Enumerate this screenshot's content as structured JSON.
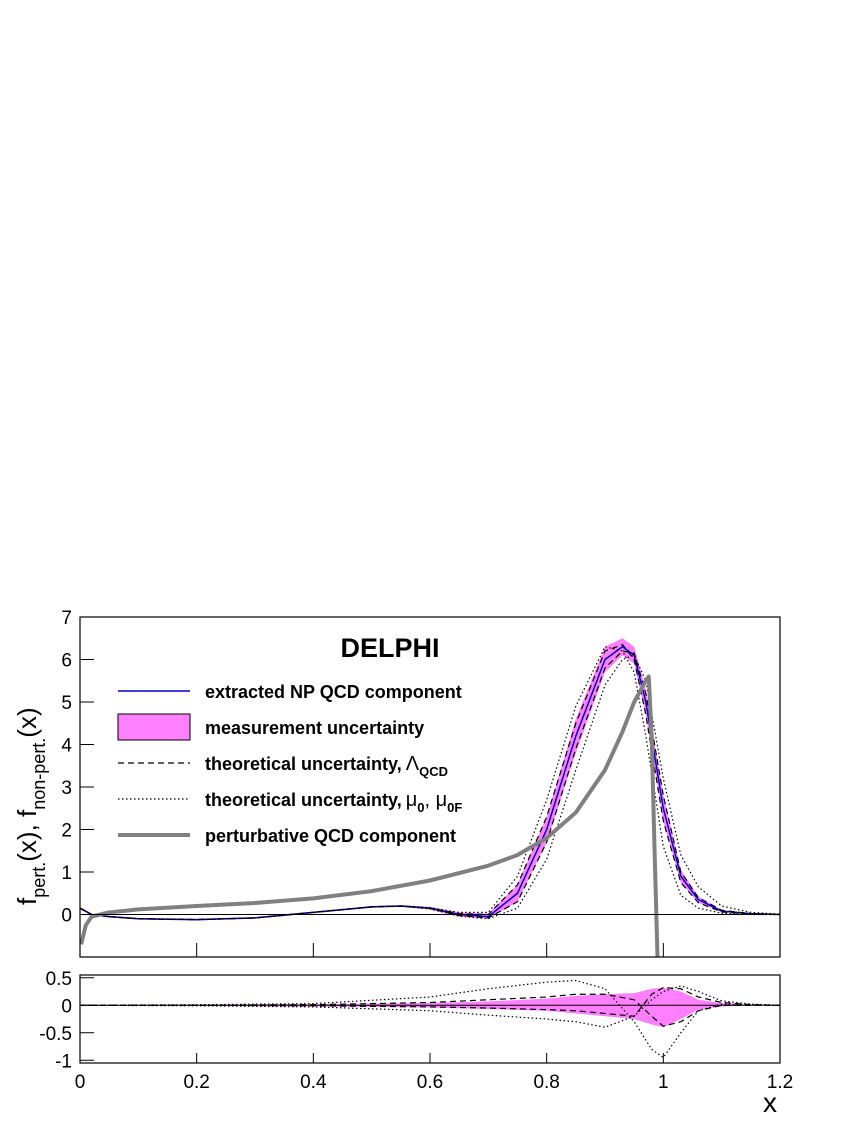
{
  "chart_data": [
    {
      "type": "line",
      "title": "DELPHI",
      "ylabel_parts": [
        {
          "text": "f",
          "sub": "pert."
        },
        {
          "text": "(x),  f",
          "sub": "non-pert."
        },
        {
          "text": "(x)"
        }
      ],
      "xlim": [
        0,
        1.2
      ],
      "xticks": [
        0,
        0.2,
        0.4,
        0.6,
        0.8,
        1,
        1.2
      ],
      "ylim": [
        -1,
        7
      ],
      "yticks": [
        0,
        1,
        2,
        3,
        4,
        5,
        6,
        7
      ],
      "series": [
        {
          "name": "extracted NP QCD component",
          "color": "#0000cc",
          "style": "solid",
          "x": [
            0,
            0.02,
            0.05,
            0.1,
            0.2,
            0.3,
            0.4,
            0.5,
            0.55,
            0.6,
            0.65,
            0.7,
            0.75,
            0.8,
            0.85,
            0.9,
            0.93,
            0.95,
            0.97,
            1.0,
            1.03,
            1.06,
            1.1,
            1.15,
            1.2
          ],
          "values": [
            0.15,
            0.0,
            -0.05,
            -0.1,
            -0.12,
            -0.08,
            0.05,
            0.18,
            0.2,
            0.15,
            0.0,
            -0.05,
            0.5,
            2.0,
            4.2,
            6.0,
            6.3,
            6.1,
            5.0,
            2.5,
            0.9,
            0.35,
            0.08,
            0.02,
            0.0
          ]
        },
        {
          "name": "measurement uncertainty",
          "color": "#ff80ff",
          "style": "band",
          "x": [
            0,
            0.02,
            0.05,
            0.1,
            0.2,
            0.3,
            0.4,
            0.5,
            0.55,
            0.6,
            0.65,
            0.7,
            0.75,
            0.8,
            0.85,
            0.9,
            0.93,
            0.95,
            0.97,
            1.0,
            1.03,
            1.06,
            1.1,
            1.15,
            1.2
          ],
          "upper": [
            0.18,
            0.02,
            -0.03,
            -0.08,
            -0.1,
            -0.06,
            0.07,
            0.2,
            0.22,
            0.18,
            0.05,
            0.02,
            0.7,
            2.3,
            4.6,
            6.3,
            6.5,
            6.3,
            5.3,
            2.8,
            1.05,
            0.42,
            0.1,
            0.03,
            0.01
          ],
          "lower": [
            0.12,
            -0.02,
            -0.07,
            -0.12,
            -0.14,
            -0.1,
            0.03,
            0.16,
            0.18,
            0.12,
            -0.05,
            -0.1,
            0.3,
            1.7,
            3.8,
            5.7,
            6.1,
            5.9,
            4.7,
            2.2,
            0.75,
            0.28,
            0.06,
            0.01,
            0.0
          ]
        },
        {
          "name": "theoretical uncertainty,",
          "name_math": [
            {
              "text": "Λ",
              "sub": "QCD"
            }
          ],
          "color": "#000000",
          "style": "dashed",
          "x": [
            0,
            0.02,
            0.05,
            0.1,
            0.2,
            0.3,
            0.4,
            0.5,
            0.55,
            0.6,
            0.65,
            0.7,
            0.75,
            0.8,
            0.85,
            0.9,
            0.93,
            0.95,
            0.97,
            1.0,
            1.03,
            1.06,
            1.1,
            1.15,
            1.2
          ],
          "curves": [
            [
              0.15,
              0.0,
              -0.05,
              -0.1,
              -0.12,
              -0.08,
              0.05,
              0.18,
              0.2,
              0.15,
              0.02,
              0.0,
              0.7,
              2.3,
              4.5,
              6.2,
              6.35,
              6.0,
              4.7,
              2.2,
              0.75,
              0.28,
              0.06,
              0.01,
              0.0
            ],
            [
              0.15,
              0.0,
              -0.05,
              -0.1,
              -0.12,
              -0.08,
              0.05,
              0.18,
              0.2,
              0.14,
              -0.02,
              -0.08,
              0.3,
              1.7,
              3.9,
              5.8,
              6.2,
              6.15,
              5.2,
              2.8,
              1.0,
              0.4,
              0.1,
              0.02,
              0.0
            ]
          ]
        },
        {
          "name": "theoretical uncertainty,",
          "name_math": [
            {
              "text": "μ",
              "sub": "0"
            },
            {
              "text": ", μ",
              "sub": "0F"
            }
          ],
          "color": "#000000",
          "style": "dotted",
          "x": [
            0,
            0.02,
            0.05,
            0.1,
            0.2,
            0.3,
            0.4,
            0.5,
            0.55,
            0.6,
            0.65,
            0.7,
            0.75,
            0.8,
            0.85,
            0.9,
            0.93,
            0.95,
            0.97,
            1.0,
            1.03,
            1.06,
            1.1,
            1.15,
            1.2
          ],
          "curves": [
            [
              0.15,
              0.0,
              -0.05,
              -0.1,
              -0.12,
              -0.08,
              0.05,
              0.18,
              0.2,
              0.16,
              0.05,
              0.05,
              0.9,
              2.7,
              4.9,
              6.3,
              6.2,
              5.7,
              4.2,
              1.6,
              0.45,
              0.15,
              0.03,
              0.0,
              0.0
            ],
            [
              0.15,
              0.0,
              -0.05,
              -0.1,
              -0.12,
              -0.08,
              0.05,
              0.18,
              0.2,
              0.13,
              -0.04,
              -0.1,
              0.15,
              1.3,
              3.4,
              5.4,
              6.0,
              6.1,
              5.5,
              3.2,
              1.4,
              0.65,
              0.2,
              0.05,
              0.01
            ]
          ]
        },
        {
          "name": "perturbative QCD component",
          "color": "#808080",
          "style": "thick",
          "x": [
            0.002,
            0.01,
            0.02,
            0.05,
            0.1,
            0.2,
            0.3,
            0.4,
            0.5,
            0.6,
            0.7,
            0.75,
            0.8,
            0.85,
            0.9,
            0.93,
            0.95,
            0.97,
            0.975,
            0.98,
            0.985,
            0.99
          ],
          "values": [
            -0.7,
            -0.25,
            -0.05,
            0.05,
            0.12,
            0.2,
            0.27,
            0.38,
            0.55,
            0.8,
            1.15,
            1.4,
            1.8,
            2.4,
            3.4,
            4.3,
            5.0,
            5.5,
            5.6,
            4.2,
            1.5,
            -1.0
          ]
        }
      ]
    },
    {
      "type": "line",
      "xlabel": "x",
      "xlim": [
        0,
        1.2
      ],
      "xticks": [
        0,
        0.2,
        0.4,
        0.6,
        0.8,
        1,
        1.2
      ],
      "ylim": [
        -1.05,
        0.55
      ],
      "yticks": [
        0.5,
        0,
        -0.5,
        -1
      ],
      "series": [
        {
          "color": "#ff80ff",
          "style": "band",
          "x": [
            0,
            0.2,
            0.4,
            0.6,
            0.7,
            0.8,
            0.85,
            0.9,
            0.95,
            0.98,
            1.0,
            1.03,
            1.06,
            1.1,
            1.15,
            1.2
          ],
          "upper": [
            0.01,
            0.01,
            0.02,
            0.04,
            0.07,
            0.12,
            0.17,
            0.2,
            0.22,
            0.3,
            0.32,
            0.25,
            0.1,
            0.04,
            0.01,
            0.0
          ],
          "lower": [
            -0.01,
            -0.01,
            -0.02,
            -0.04,
            -0.07,
            -0.1,
            -0.15,
            -0.2,
            -0.25,
            -0.35,
            -0.4,
            -0.25,
            -0.08,
            -0.02,
            0.0,
            0.0
          ]
        },
        {
          "color": "#000000",
          "style": "dashed",
          "x": [
            0,
            0.2,
            0.4,
            0.6,
            0.7,
            0.8,
            0.85,
            0.9,
            0.95,
            0.98,
            1.0,
            1.03,
            1.06,
            1.1,
            1.15,
            1.2
          ],
          "curves": [
            [
              0,
              0,
              0.01,
              0.05,
              0.1,
              0.15,
              0.2,
              0.2,
              0.1,
              -0.2,
              -0.38,
              -0.3,
              -0.1,
              0.0,
              0,
              0
            ],
            [
              0,
              0,
              -0.01,
              -0.03,
              -0.05,
              -0.08,
              -0.1,
              -0.15,
              -0.2,
              0.2,
              0.32,
              0.3,
              0.15,
              0.05,
              0.01,
              0
            ]
          ]
        },
        {
          "color": "#000000",
          "style": "dotted",
          "x": [
            0,
            0.2,
            0.4,
            0.6,
            0.7,
            0.8,
            0.85,
            0.9,
            0.95,
            0.98,
            1.0,
            1.03,
            1.06,
            1.1,
            1.15,
            1.2
          ],
          "curves": [
            [
              0,
              0.01,
              0.03,
              0.15,
              0.3,
              0.42,
              0.45,
              0.3,
              -0.3,
              -0.8,
              -0.95,
              -0.5,
              -0.1,
              0.02,
              0.01,
              0
            ],
            [
              0,
              -0.01,
              -0.03,
              -0.1,
              -0.18,
              -0.25,
              -0.3,
              -0.4,
              -0.2,
              0.1,
              0.25,
              0.35,
              0.25,
              0.08,
              0.02,
              0
            ]
          ]
        }
      ]
    }
  ]
}
